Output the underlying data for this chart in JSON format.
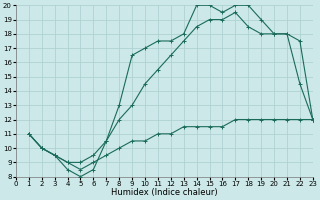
{
  "xlabel": "Humidex (Indice chaleur)",
  "xlim": [
    0,
    23
  ],
  "ylim": [
    8,
    20
  ],
  "xticks": [
    0,
    1,
    2,
    3,
    4,
    5,
    6,
    7,
    8,
    9,
    10,
    11,
    12,
    13,
    14,
    15,
    16,
    17,
    18,
    19,
    20,
    21,
    22,
    23
  ],
  "yticks": [
    8,
    9,
    10,
    11,
    12,
    13,
    14,
    15,
    16,
    17,
    18,
    19,
    20
  ],
  "bg_color": "#cce8e8",
  "grid_color": "#aacece",
  "line_color": "#1a6b5a",
  "line1_x": [
    1,
    2,
    3,
    4,
    5,
    6,
    7,
    8,
    9,
    10,
    11,
    12,
    13,
    14,
    15,
    16,
    17,
    18,
    19,
    20,
    21,
    22,
    23
  ],
  "line1_y": [
    11,
    10,
    9.5,
    8.5,
    8.0,
    8.5,
    10.5,
    13.0,
    16.5,
    17.0,
    17.5,
    17.5,
    18.0,
    20.0,
    20.0,
    19.5,
    20.0,
    20.0,
    19.0,
    18.0,
    18.0,
    14.5,
    12.0
  ],
  "line2_x": [
    1,
    2,
    3,
    4,
    5,
    6,
    7,
    8,
    9,
    10,
    11,
    12,
    13,
    14,
    15,
    16,
    17,
    18,
    19,
    20,
    21,
    22,
    23
  ],
  "line2_y": [
    11.0,
    10.0,
    9.5,
    9.0,
    9.0,
    9.5,
    10.5,
    12.0,
    13.0,
    14.5,
    15.5,
    16.5,
    17.5,
    18.5,
    19.0,
    19.0,
    19.5,
    18.5,
    18.0,
    18.0,
    18.0,
    17.5,
    12.0
  ],
  "line3_x": [
    1,
    2,
    3,
    4,
    5,
    6,
    7,
    8,
    9,
    10,
    11,
    12,
    13,
    14,
    15,
    16,
    17,
    18,
    19,
    20,
    21,
    22,
    23
  ],
  "line3_y": [
    11.0,
    10.0,
    9.5,
    9.0,
    8.5,
    9.0,
    9.5,
    10.0,
    10.5,
    10.5,
    11.0,
    11.0,
    11.5,
    11.5,
    11.5,
    11.5,
    12.0,
    12.0,
    12.0,
    12.0,
    12.0,
    12.0,
    12.0
  ],
  "tick_fontsize": 5,
  "xlabel_fontsize": 6,
  "linewidth": 0.8,
  "markersize": 3
}
